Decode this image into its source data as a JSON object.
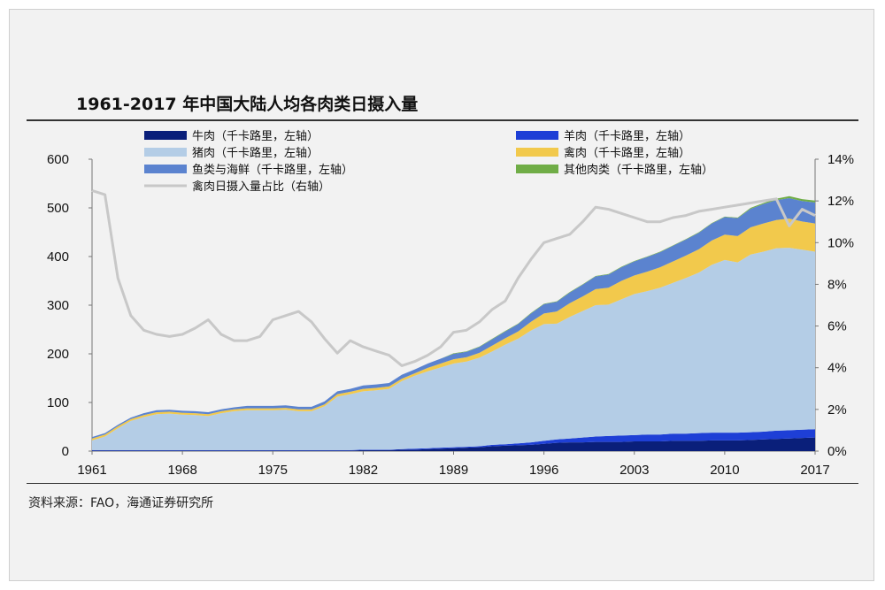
{
  "title": "1961-2017 年中国大陆人均各肉类日摄入量",
  "source": "资料来源：FAO，海通证券研究所",
  "chart_data": {
    "type": "area",
    "x": [
      1961,
      1962,
      1963,
      1964,
      1965,
      1966,
      1967,
      1968,
      1969,
      1970,
      1971,
      1972,
      1973,
      1974,
      1975,
      1976,
      1977,
      1978,
      1979,
      1980,
      1981,
      1982,
      1983,
      1984,
      1985,
      1986,
      1987,
      1988,
      1989,
      1990,
      1991,
      1992,
      1993,
      1994,
      1995,
      1996,
      1997,
      1998,
      1999,
      2000,
      2001,
      2002,
      2003,
      2004,
      2005,
      2006,
      2007,
      2008,
      2009,
      2010,
      2011,
      2012,
      2013,
      2014,
      2015,
      2016,
      2017
    ],
    "x_ticks": [
      "1961",
      "1968",
      "1975",
      "1982",
      "1989",
      "1996",
      "2003",
      "2010",
      "2017"
    ],
    "ylim_left": [
      0,
      600
    ],
    "y_ticks_left": [
      "0",
      "100",
      "200",
      "300",
      "400",
      "500",
      "600"
    ],
    "ylim_right": [
      0,
      14
    ],
    "y_ticks_right": [
      "0%",
      "2%",
      "4%",
      "6%",
      "8%",
      "10%",
      "12%",
      "14%"
    ],
    "stacked": true,
    "series": [
      {
        "name": "牛肉（千卡路里，左轴）",
        "color": "#0a1f7a",
        "axis": "left",
        "values": [
          1,
          1,
          1,
          1,
          1,
          1,
          1,
          1,
          1,
          1,
          1,
          1,
          1,
          1,
          1,
          1,
          1,
          1,
          1,
          1,
          1,
          2,
          2,
          2,
          3,
          3,
          4,
          5,
          6,
          7,
          8,
          10,
          11,
          12,
          13,
          15,
          17,
          18,
          18,
          19,
          19,
          19,
          20,
          20,
          20,
          21,
          21,
          21,
          22,
          22,
          22,
          23,
          24,
          25,
          26,
          27,
          28
        ]
      },
      {
        "name": "羊肉（千卡路里，左轴）",
        "color": "#1e3fd6",
        "axis": "left",
        "values": [
          1,
          1,
          1,
          1,
          1,
          1,
          1,
          1,
          1,
          1,
          1,
          1,
          1,
          1,
          1,
          1,
          1,
          1,
          1,
          1,
          1,
          1,
          1,
          1,
          1,
          2,
          2,
          2,
          2,
          2,
          2,
          3,
          3,
          4,
          5,
          6,
          7,
          8,
          10,
          11,
          12,
          13,
          13,
          14,
          14,
          15,
          15,
          16,
          16,
          16,
          16,
          16,
          16,
          17,
          17,
          17,
          17
        ]
      },
      {
        "name": "猪肉（千卡路里，左轴）",
        "color": "#b4cde6",
        "axis": "left",
        "values": [
          20,
          28,
          45,
          60,
          68,
          74,
          75,
          73,
          72,
          70,
          76,
          80,
          82,
          82,
          82,
          83,
          80,
          80,
          90,
          110,
          115,
          120,
          122,
          125,
          140,
          150,
          158,
          165,
          172,
          175,
          182,
          192,
          205,
          215,
          230,
          240,
          238,
          250,
          260,
          270,
          270,
          280,
          290,
          295,
          302,
          310,
          320,
          330,
          345,
          355,
          350,
          365,
          370,
          375,
          375,
          370,
          365
        ]
      },
      {
        "name": "禽肉（千卡路里，左轴）",
        "color": "#f2c94c",
        "axis": "left",
        "values": [
          4,
          4,
          4,
          4,
          4,
          4,
          4,
          4,
          4,
          4,
          4,
          4,
          4,
          4,
          4,
          4,
          4,
          4,
          4,
          5,
          5,
          5,
          5,
          5,
          5,
          5,
          7,
          8,
          9,
          9,
          10,
          12,
          13,
          15,
          18,
          22,
          25,
          28,
          30,
          33,
          35,
          38,
          38,
          40,
          42,
          44,
          46,
          48,
          50,
          52,
          54,
          56,
          58,
          58,
          60,
          58,
          58
        ]
      },
      {
        "name": "鱼类与海鲜（千卡路里，左轴）",
        "color": "#5b83cf",
        "axis": "left",
        "values": [
          3,
          3,
          3,
          3,
          4,
          4,
          4,
          4,
          4,
          4,
          4,
          4,
          5,
          5,
          5,
          5,
          5,
          5,
          6,
          6,
          6,
          7,
          7,
          7,
          8,
          8,
          9,
          10,
          11,
          11,
          12,
          13,
          14,
          15,
          17,
          19,
          20,
          22,
          24,
          26,
          27,
          28,
          29,
          30,
          31,
          32,
          33,
          34,
          35,
          36,
          37,
          38,
          40,
          41,
          42,
          42,
          43
        ]
      },
      {
        "name": "其他肉类（千卡路里，左轴）",
        "color": "#70ad47",
        "axis": "left",
        "values": [
          0,
          0,
          0,
          0,
          0,
          0,
          0,
          0,
          0,
          0,
          0,
          0,
          0,
          0,
          0,
          0,
          0,
          0,
          0,
          0,
          0,
          0,
          0,
          0,
          0,
          0,
          0,
          0,
          1,
          1,
          1,
          1,
          1,
          1,
          1,
          1,
          1,
          1,
          1,
          1,
          1,
          1,
          1,
          1,
          1,
          1,
          1,
          1,
          1,
          1,
          1,
          2,
          2,
          3,
          4,
          4,
          4
        ]
      },
      {
        "name": "禽肉日摄入量占比（右轴）",
        "color": "#c8c8c8",
        "axis": "right",
        "type": "line",
        "values": [
          12.5,
          12.3,
          8.3,
          6.5,
          5.8,
          5.6,
          5.5,
          5.6,
          5.9,
          6.3,
          5.6,
          5.3,
          5.3,
          5.5,
          6.3,
          6.5,
          6.7,
          6.2,
          5.4,
          4.7,
          5.3,
          5.0,
          4.8,
          4.6,
          4.1,
          4.3,
          4.6,
          5.0,
          5.7,
          5.8,
          6.2,
          6.8,
          7.2,
          8.3,
          9.2,
          10.0,
          10.2,
          10.4,
          11.0,
          11.7,
          11.6,
          11.4,
          11.2,
          11.0,
          11.0,
          11.2,
          11.3,
          11.5,
          11.6,
          11.7,
          11.8,
          11.9,
          12.0,
          12.1,
          10.8,
          11.6,
          11.3
        ]
      }
    ]
  }
}
